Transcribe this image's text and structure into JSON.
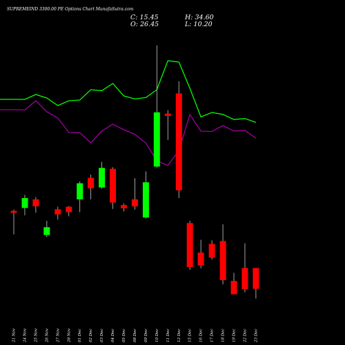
{
  "chart_data": {
    "type": "candlestick",
    "title": "SUPREMEIND 3300.00 PE Options Chart MunafaSutra.com",
    "ohlc": {
      "close_label": "C: 15.45",
      "open_label": "O: 26.45",
      "high_label": "H: 34.60",
      "low_label": "L: 10.20"
    },
    "colors": {
      "up": "#00ff00",
      "down": "#ff0000",
      "line_1": "#00ff00",
      "line_2": "#a000a0",
      "background": "#000000"
    },
    "categories": [
      "21 Nov",
      "24 Nov",
      "25 Nov",
      "26 Nov",
      "27 Nov",
      "28 Nov",
      "01 Dec",
      "02 Dec",
      "03 Dec",
      "04 Dec",
      "05 Dec",
      "08 Dec",
      "09 Dec",
      "10 Dec",
      "11 Dec",
      "12 Dec",
      "15 Dec",
      "16 Dec",
      "17 Dec",
      "18 Dec",
      "19 Dec",
      "22 Dec",
      "23 Dec"
    ],
    "candles": [
      {
        "o": 20.3,
        "h": 20.7,
        "l": 13.0,
        "c": 19.7
      },
      {
        "o": 21.2,
        "h": 25.3,
        "l": 18.9,
        "c": 24.3
      },
      {
        "o": 23.9,
        "h": 24.6,
        "l": 19.7,
        "c": 21.7
      },
      {
        "o": 12.8,
        "h": 17.2,
        "l": 12.1,
        "c": 15.2
      },
      {
        "o": 20.8,
        "h": 21.6,
        "l": 17.6,
        "c": 19.2
      },
      {
        "o": 21.6,
        "h": 21.8,
        "l": 18.6,
        "c": 19.9
      },
      {
        "o": 23.9,
        "h": 29.5,
        "l": 19.9,
        "c": 28.9
      },
      {
        "o": 30.6,
        "h": 31.6,
        "l": 23.9,
        "c": 27.3
      },
      {
        "o": 27.6,
        "h": 35.6,
        "l": 27.2,
        "c": 33.7
      },
      {
        "o": 33.4,
        "h": 33.9,
        "l": 20.9,
        "c": 22.9
      },
      {
        "o": 22.1,
        "h": 22.6,
        "l": 20.1,
        "c": 21.1
      },
      {
        "o": 23.9,
        "h": 30.5,
        "l": 20.7,
        "c": 21.7
      },
      {
        "o": 18.2,
        "h": 32.6,
        "l": 17.9,
        "c": 29.2
      },
      {
        "o": 34.1,
        "h": 71.9,
        "l": 33.7,
        "c": 51.0
      },
      {
        "o": 50.6,
        "h": 51.7,
        "l": 42.4,
        "c": 49.9
      },
      {
        "o": 56.9,
        "h": 60.7,
        "l": 24.3,
        "c": 26.7
      },
      {
        "o": 16.5,
        "h": 17.2,
        "l": 1.9,
        "c": 2.8
      },
      {
        "o": 7.3,
        "h": 11.3,
        "l": 2.4,
        "c": 3.3
      },
      {
        "o": 10.0,
        "h": 11.1,
        "l": 5.1,
        "c": 5.7
      },
      {
        "o": 10.9,
        "h": 16.1,
        "l": -2.6,
        "c": -1.3
      },
      {
        "o": -1.5,
        "h": 1.0,
        "l": -5.1,
        "c": -5.7
      },
      {
        "o": 2.5,
        "h": 10.2,
        "l": -5.1,
        "c": -4.1
      },
      {
        "o": 2.5,
        "h": 2.5,
        "l": -7.0,
        "c": -4.0
      }
    ],
    "line_series": [
      {
        "values": [
          88,
          88,
          91.5,
          89,
          83.5,
          87,
          87.5,
          95,
          94.3,
          99.5,
          90.5,
          88.3,
          89.3,
          95,
          116,
          115,
          96,
          75.3,
          78.5,
          77.1,
          73.4,
          74.1,
          71.3
        ]
      },
      {
        "values": [
          80.5,
          80.3,
          87,
          79,
          74.5,
          64,
          63.8,
          56.5,
          65,
          70,
          66,
          62.7,
          56.3,
          43.5,
          40.1,
          51,
          77,
          65,
          64.7,
          69,
          65,
          65.6,
          59.8
        ]
      }
    ]
  }
}
